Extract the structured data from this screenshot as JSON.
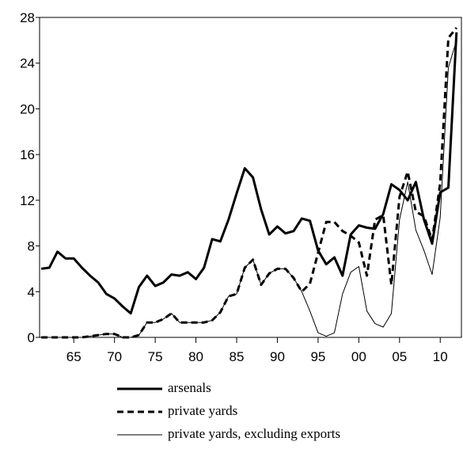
{
  "chart_data": {
    "type": "line",
    "x": [
      1961,
      1962,
      1963,
      1964,
      1965,
      1966,
      1967,
      1968,
      1969,
      1970,
      1971,
      1972,
      1973,
      1974,
      1975,
      1976,
      1977,
      1978,
      1979,
      1980,
      1981,
      1982,
      1983,
      1984,
      1985,
      1986,
      1987,
      1988,
      1989,
      1990,
      1991,
      1992,
      1993,
      1994,
      1995,
      1996,
      1997,
      1998,
      1999,
      2000,
      2001,
      2002,
      2003,
      2004,
      2005,
      2006,
      2007,
      2008,
      2009,
      2010,
      2011,
      2012
    ],
    "series": [
      {
        "name": "arsenals",
        "color": "#000000",
        "width": 3,
        "dash": "none",
        "values": [
          6.0,
          6.1,
          7.5,
          6.9,
          6.9,
          6.1,
          5.4,
          4.8,
          3.8,
          3.4,
          2.7,
          2.1,
          4.4,
          5.4,
          4.5,
          4.8,
          5.5,
          5.4,
          5.7,
          5.1,
          6.1,
          8.6,
          8.4,
          10.3,
          12.6,
          14.8,
          14.0,
          11.2,
          9.0,
          9.7,
          9.1,
          9.3,
          10.4,
          10.2,
          7.6,
          6.4,
          7.0,
          5.4,
          9.0,
          9.8,
          9.6,
          9.5,
          10.8,
          13.4,
          12.9,
          12.0,
          13.6,
          10.3,
          8.2,
          12.7,
          13.1,
          26.7
        ]
      },
      {
        "name": "private yards",
        "color": "#000000",
        "width": 3,
        "dash": "8 5",
        "values": [
          0,
          0,
          0,
          0,
          0,
          0,
          0.1,
          0.2,
          0.3,
          0.3,
          0,
          0,
          0.2,
          1.3,
          1.3,
          1.6,
          2.1,
          1.3,
          1.3,
          1.3,
          1.3,
          1.5,
          2.2,
          3.6,
          3.8,
          6.1,
          6.8,
          4.6,
          5.6,
          6.0,
          6.0,
          5.2,
          4.0,
          4.7,
          7.4,
          10.1,
          10.1,
          9.3,
          8.9,
          8.3,
          5.4,
          10.3,
          10.7,
          4.6,
          12.3,
          14.5,
          11.0,
          10.6,
          8.5,
          13.5,
          26.2,
          27.1
        ]
      },
      {
        "name": "private yards, excluding exports",
        "color": "#000000",
        "width": 1,
        "dash": "none",
        "values": [
          0,
          0,
          0,
          0,
          0,
          0,
          0.1,
          0.2,
          0.3,
          0.3,
          0,
          0,
          0.2,
          1.3,
          1.3,
          1.6,
          2.1,
          1.3,
          1.3,
          1.3,
          1.3,
          1.5,
          2.2,
          3.6,
          3.8,
          6.1,
          6.8,
          4.6,
          5.6,
          6.0,
          6.0,
          5.2,
          4.0,
          2.3,
          0.4,
          0.1,
          0.4,
          3.8,
          5.7,
          6.2,
          2.3,
          1.2,
          0.9,
          2.1,
          10.3,
          13.6,
          9.4,
          7.6,
          5.5,
          10.5,
          23.6,
          26.0
        ]
      }
    ],
    "xlim": [
      1960.8,
      2012.6
    ],
    "xticks": [
      {
        "value": 1965,
        "label": "65"
      },
      {
        "value": 1970,
        "label": "70"
      },
      {
        "value": 1975,
        "label": "75"
      },
      {
        "value": 1980,
        "label": "80"
      },
      {
        "value": 1985,
        "label": "85"
      },
      {
        "value": 1990,
        "label": "90"
      },
      {
        "value": 1995,
        "label": "95"
      },
      {
        "value": 2000,
        "label": "00"
      },
      {
        "value": 2005,
        "label": "05"
      },
      {
        "value": 2010,
        "label": "10"
      }
    ],
    "ylim": [
      0,
      28
    ],
    "yticks": [
      0,
      4,
      8,
      12,
      16,
      20,
      24,
      28
    ]
  }
}
